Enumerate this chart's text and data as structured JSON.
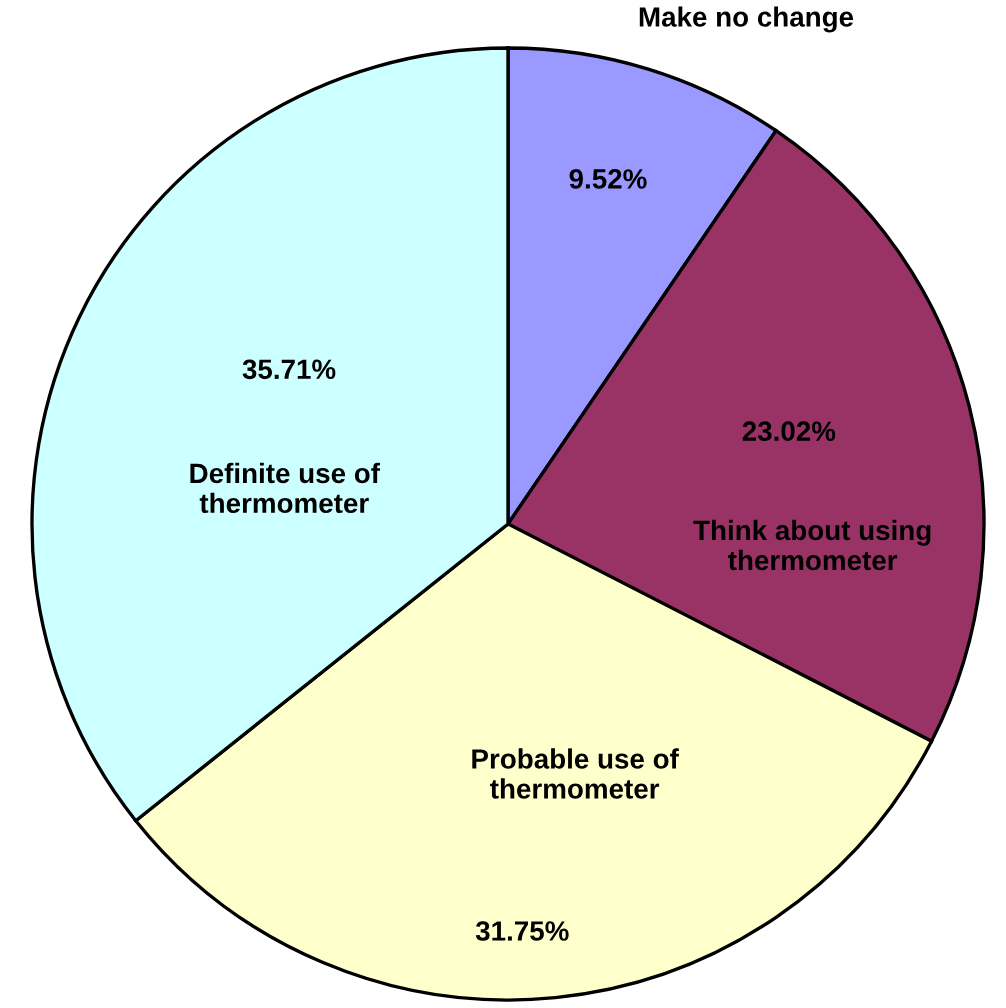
{
  "chart_data": {
    "type": "pie",
    "categories": [
      "Make no change",
      "Think about using\nthermometer",
      "Probable use of\nthermometer",
      "Definite use of\nthermometer"
    ],
    "values": [
      9.52,
      23.02,
      31.75,
      35.71
    ],
    "value_labels": [
      "9.52%",
      "23.02%",
      "31.75%",
      "35.71%"
    ],
    "colors": [
      "#9999ff",
      "#993366",
      "#ffffcc",
      "#ccffff"
    ]
  }
}
